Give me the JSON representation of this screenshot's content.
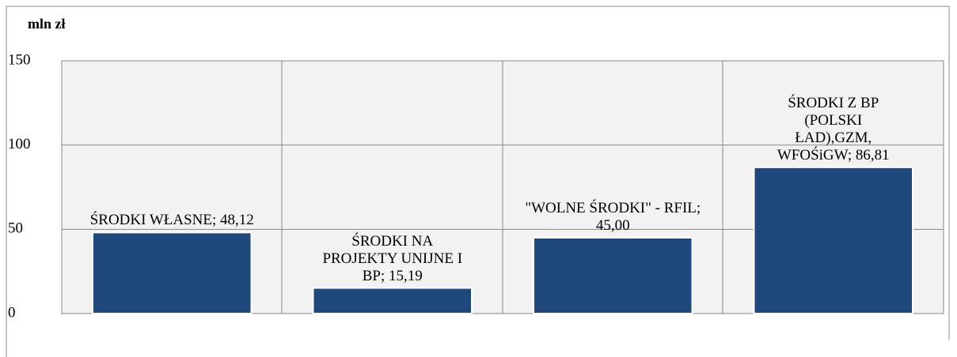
{
  "chart_data": {
    "type": "bar",
    "y_axis_label": "mln zł",
    "categories": [
      "ŚRODKI WŁASNE;",
      "ŚRODKI NA PROJEKTY UNIJNE I BP;",
      "\"WOLNE ŚRODKI\" - RFIL;",
      "ŚRODKI Z BP (POLSKI ŁAD),GZM, WFOŚiGW;"
    ],
    "values": [
      48.12,
      15.19,
      45.0,
      86.81
    ],
    "value_labels": [
      "48,12",
      "15,19",
      "45,00",
      "86,81"
    ],
    "color": "#1f497d",
    "ylim": [
      0,
      150
    ],
    "yticks": [
      0,
      50,
      100,
      150
    ],
    "grid": true
  }
}
